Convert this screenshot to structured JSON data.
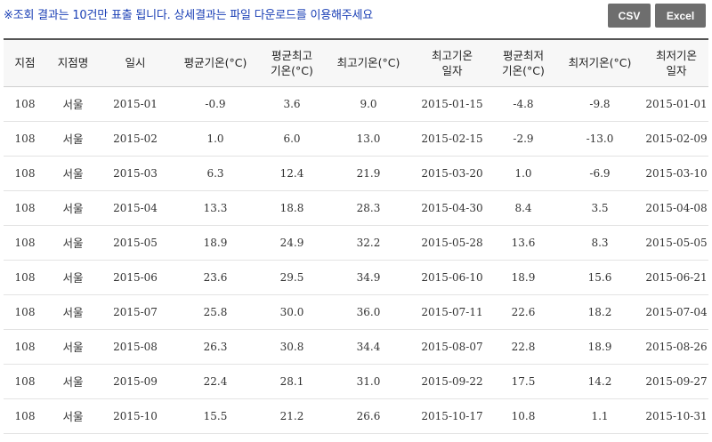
{
  "notice": "※조회 결과는 10건만 표출 됩니다. 상세결과는 파일 다운로드를 이용해주세요",
  "buttons": {
    "csv": "CSV",
    "excel": "Excel"
  },
  "table": {
    "headers": [
      [
        "지점"
      ],
      [
        "지점명"
      ],
      [
        "일시"
      ],
      [
        "평균기온(°C)"
      ],
      [
        "평균최고",
        "기온(°C)"
      ],
      [
        "최고기온(°C)"
      ],
      [
        "최고기온",
        "일자"
      ],
      [
        "평균최저",
        "기온(°C)"
      ],
      [
        "최저기온(°C)"
      ],
      [
        "최저기온",
        "일자"
      ]
    ],
    "rows": [
      [
        "108",
        "서울",
        "2015-01",
        "-0.9",
        "3.6",
        "9.0",
        "2015-01-15",
        "-4.8",
        "-9.8",
        "2015-01-01"
      ],
      [
        "108",
        "서울",
        "2015-02",
        "1.0",
        "6.0",
        "13.0",
        "2015-02-15",
        "-2.9",
        "-13.0",
        "2015-02-09"
      ],
      [
        "108",
        "서울",
        "2015-03",
        "6.3",
        "12.4",
        "21.9",
        "2015-03-20",
        "1.0",
        "-6.9",
        "2015-03-10"
      ],
      [
        "108",
        "서울",
        "2015-04",
        "13.3",
        "18.8",
        "28.3",
        "2015-04-30",
        "8.4",
        "3.5",
        "2015-04-08"
      ],
      [
        "108",
        "서울",
        "2015-05",
        "18.9",
        "24.9",
        "32.2",
        "2015-05-28",
        "13.6",
        "8.3",
        "2015-05-05"
      ],
      [
        "108",
        "서울",
        "2015-06",
        "23.6",
        "29.5",
        "34.9",
        "2015-06-10",
        "18.9",
        "15.6",
        "2015-06-21"
      ],
      [
        "108",
        "서울",
        "2015-07",
        "25.8",
        "30.0",
        "36.0",
        "2015-07-11",
        "22.6",
        "18.2",
        "2015-07-04"
      ],
      [
        "108",
        "서울",
        "2015-08",
        "26.3",
        "30.8",
        "34.4",
        "2015-08-07",
        "22.8",
        "18.9",
        "2015-08-26"
      ],
      [
        "108",
        "서울",
        "2015-09",
        "22.4",
        "28.1",
        "31.0",
        "2015-09-22",
        "17.5",
        "14.2",
        "2015-09-27"
      ],
      [
        "108",
        "서울",
        "2015-10",
        "15.5",
        "21.2",
        "26.6",
        "2015-10-17",
        "10.8",
        "1.1",
        "2015-10-31"
      ]
    ]
  }
}
